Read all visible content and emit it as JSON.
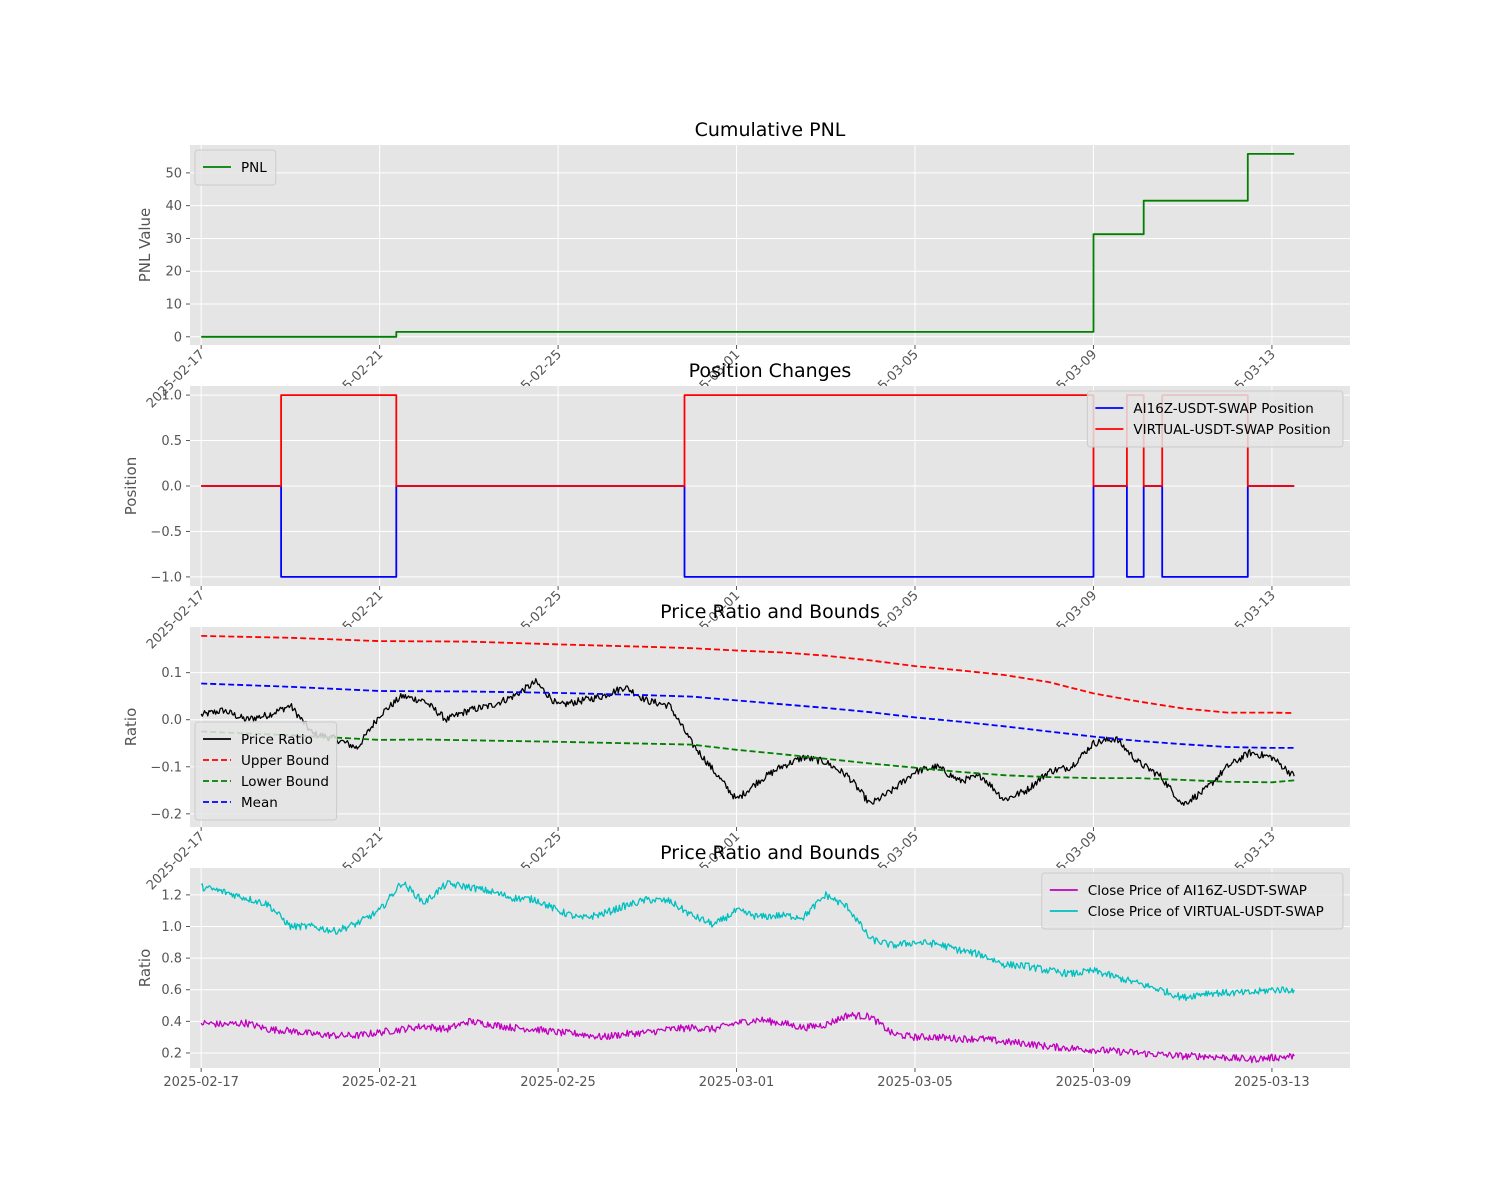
{
  "chart_data": [
    {
      "type": "line",
      "title": "Cumulative PNL",
      "xlabel": "",
      "ylabel": "PNL Value",
      "xlim": [
        "2025-02-16T18:00",
        "2025-03-14T18:00"
      ],
      "ylim": [
        -2.5,
        58.5
      ],
      "yticks": [
        0,
        10,
        20,
        30,
        40,
        50
      ],
      "xticks": [
        "2025-02-17",
        "2025-02-21",
        "2025-02-25",
        "2025-03-01",
        "2025-03-05",
        "2025-03-09",
        "2025-03-13"
      ],
      "legend_position": "upper-left",
      "grid": true,
      "series": [
        {
          "name": "PNL",
          "color": "#008000",
          "style": "solid",
          "step": true,
          "x": [
            "2025-02-17T00:00",
            "2025-02-21T09:00",
            "2025-03-09T00:00",
            "2025-03-10T03:00",
            "2025-03-12T11:00",
            "2025-03-13T12:00"
          ],
          "y": [
            0,
            1.5,
            31.3,
            41.5,
            55.8,
            55.8
          ]
        }
      ]
    },
    {
      "type": "line",
      "title": "Position Changes",
      "xlabel": "",
      "ylabel": "Position",
      "xlim": [
        "2025-02-16T18:00",
        "2025-03-14T18:00"
      ],
      "ylim": [
        -1.1,
        1.1
      ],
      "yticks": [
        -1.0,
        -0.5,
        0.0,
        0.5,
        1.0
      ],
      "ytick_labels": [
        "−1.0",
        "−0.5",
        "0.0",
        "0.5",
        "1.0"
      ],
      "xticks": [
        "2025-02-17",
        "2025-02-21",
        "2025-02-25",
        "2025-03-01",
        "2025-03-05",
        "2025-03-09",
        "2025-03-13"
      ],
      "legend_position": "upper-right",
      "grid": true,
      "series": [
        {
          "name": "AI16Z-USDT-SWAP Position",
          "color": "#0000ff",
          "style": "solid",
          "step": true,
          "x": [
            "2025-02-17T00:00",
            "2025-02-18T19:00",
            "2025-02-21T09:00",
            "2025-02-27T20:00",
            "2025-03-09T00:00",
            "2025-03-09T18:00",
            "2025-03-10T03:00",
            "2025-03-10T13:00",
            "2025-03-12T11:00",
            "2025-03-13T12:00"
          ],
          "y": [
            0,
            -1,
            0,
            -1,
            0,
            -1,
            0,
            -1,
            0,
            0
          ]
        },
        {
          "name": "VIRTUAL-USDT-SWAP Position",
          "color": "#ff0000",
          "style": "solid",
          "step": true,
          "x": [
            "2025-02-17T00:00",
            "2025-02-18T19:00",
            "2025-02-21T09:00",
            "2025-02-27T20:00",
            "2025-03-09T00:00",
            "2025-03-09T18:00",
            "2025-03-10T03:00",
            "2025-03-10T13:00",
            "2025-03-12T11:00",
            "2025-03-13T12:00"
          ],
          "y": [
            0,
            1,
            0,
            1,
            0,
            1,
            0,
            1,
            0,
            0
          ]
        }
      ]
    },
    {
      "type": "line",
      "title": "Price Ratio and Bounds",
      "xlabel": "",
      "ylabel": "Ratio",
      "xlim": [
        "2025-02-16T18:00",
        "2025-03-14T18:00"
      ],
      "ylim": [
        -0.228,
        0.197
      ],
      "yticks": [
        -0.2,
        -0.1,
        0.0,
        0.1
      ],
      "ytick_labels": [
        "−0.2",
        "−0.1",
        "0.0",
        "0.1"
      ],
      "xticks": [
        "2025-02-17",
        "2025-02-21",
        "2025-02-25",
        "2025-03-01",
        "2025-03-05",
        "2025-03-09",
        "2025-03-13"
      ],
      "legend_position": "lower-left",
      "grid": true,
      "series": [
        {
          "name": "Price Ratio",
          "color": "#000000",
          "style": "solid",
          "noisy": true,
          "x": [
            "2025-02-17T00:00",
            "2025-02-17T12:00",
            "2025-02-18T00:00",
            "2025-02-18T12:00",
            "2025-02-19T00:00",
            "2025-02-19T12:00",
            "2025-02-20T00:00",
            "2025-02-20T12:00",
            "2025-02-21T00:00",
            "2025-02-21T12:00",
            "2025-02-22T00:00",
            "2025-02-22T12:00",
            "2025-02-23T00:00",
            "2025-02-23T12:00",
            "2025-02-24T00:00",
            "2025-02-24T12:00",
            "2025-02-25T00:00",
            "2025-02-25T12:00",
            "2025-02-26T00:00",
            "2025-02-26T12:00",
            "2025-02-27T00:00",
            "2025-02-27T12:00",
            "2025-02-28T00:00",
            "2025-02-28T12:00",
            "2025-03-01T00:00",
            "2025-03-01T12:00",
            "2025-03-02T00:00",
            "2025-03-02T12:00",
            "2025-03-03T00:00",
            "2025-03-03T12:00",
            "2025-03-04T00:00",
            "2025-03-04T12:00",
            "2025-03-05T00:00",
            "2025-03-05T12:00",
            "2025-03-06T00:00",
            "2025-03-06T12:00",
            "2025-03-07T00:00",
            "2025-03-07T12:00",
            "2025-03-08T00:00",
            "2025-03-08T12:00",
            "2025-03-09T00:00",
            "2025-03-09T12:00",
            "2025-03-10T00:00",
            "2025-03-10T12:00",
            "2025-03-11T00:00",
            "2025-03-11T12:00",
            "2025-03-12T00:00",
            "2025-03-12T12:00",
            "2025-03-13T00:00",
            "2025-03-13T12:00"
          ],
          "y": [
            0.01,
            0.02,
            0.0,
            0.01,
            0.03,
            -0.03,
            -0.04,
            -0.06,
            0.01,
            0.05,
            0.04,
            0.0,
            0.02,
            0.03,
            0.05,
            0.08,
            0.03,
            0.04,
            0.05,
            0.07,
            0.04,
            0.03,
            -0.05,
            -0.11,
            -0.17,
            -0.13,
            -0.1,
            -0.08,
            -0.09,
            -0.12,
            -0.18,
            -0.15,
            -0.11,
            -0.1,
            -0.13,
            -0.12,
            -0.17,
            -0.15,
            -0.11,
            -0.1,
            -0.05,
            -0.04,
            -0.09,
            -0.12,
            -0.18,
            -0.15,
            -0.1,
            -0.07,
            -0.08,
            -0.12
          ]
        },
        {
          "name": "Upper Bound",
          "color": "#ff0000",
          "style": "dashed",
          "x": [
            "2025-02-17T00:00",
            "2025-02-19T00:00",
            "2025-02-21T00:00",
            "2025-02-23T00:00",
            "2025-02-25T00:00",
            "2025-02-27T00:00",
            "2025-02-28T00:00",
            "2025-03-01T00:00",
            "2025-03-02T00:00",
            "2025-03-03T00:00",
            "2025-03-04T00:00",
            "2025-03-05T00:00",
            "2025-03-06T00:00",
            "2025-03-07T00:00",
            "2025-03-08T00:00",
            "2025-03-09T00:00",
            "2025-03-10T00:00",
            "2025-03-11T00:00",
            "2025-03-12T00:00",
            "2025-03-13T00:00",
            "2025-03-13T12:00"
          ],
          "y": [
            0.178,
            0.174,
            0.167,
            0.166,
            0.16,
            0.155,
            0.152,
            0.147,
            0.143,
            0.136,
            0.126,
            0.114,
            0.105,
            0.095,
            0.08,
            0.056,
            0.039,
            0.024,
            0.015,
            0.015,
            0.014
          ]
        },
        {
          "name": "Lower Bound",
          "color": "#008000",
          "style": "dashed",
          "x": [
            "2025-02-17T00:00",
            "2025-02-19T00:00",
            "2025-02-21T00:00",
            "2025-02-22T00:00",
            "2025-02-25T00:00",
            "2025-02-28T00:00",
            "2025-03-01T00:00",
            "2025-03-02T00:00",
            "2025-03-03T00:00",
            "2025-03-04T00:00",
            "2025-03-05T00:00",
            "2025-03-06T00:00",
            "2025-03-07T00:00",
            "2025-03-08T00:00",
            "2025-03-09T00:00",
            "2025-03-10T00:00",
            "2025-03-11T00:00",
            "2025-03-12T00:00",
            "2025-03-13T00:00",
            "2025-03-13T12:00"
          ],
          "y": [
            -0.025,
            -0.033,
            -0.043,
            -0.042,
            -0.047,
            -0.053,
            -0.064,
            -0.073,
            -0.083,
            -0.093,
            -0.102,
            -0.111,
            -0.118,
            -0.122,
            -0.124,
            -0.124,
            -0.128,
            -0.132,
            -0.133,
            -0.129
          ]
        },
        {
          "name": "Mean",
          "color": "#0000ff",
          "style": "dashed",
          "x": [
            "2025-02-17T00:00",
            "2025-02-19T00:00",
            "2025-02-21T00:00",
            "2025-02-23T00:00",
            "2025-02-25T00:00",
            "2025-02-27T00:00",
            "2025-02-28T00:00",
            "2025-03-01T00:00",
            "2025-03-02T00:00",
            "2025-03-03T00:00",
            "2025-03-04T00:00",
            "2025-03-05T00:00",
            "2025-03-06T00:00",
            "2025-03-07T00:00",
            "2025-03-08T00:00",
            "2025-03-09T00:00",
            "2025-03-10T00:00",
            "2025-03-11T00:00",
            "2025-03-12T00:00",
            "2025-03-13T00:00",
            "2025-03-13T12:00"
          ],
          "y": [
            0.077,
            0.07,
            0.061,
            0.06,
            0.057,
            0.052,
            0.049,
            0.041,
            0.033,
            0.025,
            0.016,
            0.005,
            -0.004,
            -0.014,
            -0.025,
            -0.036,
            -0.045,
            -0.052,
            -0.058,
            -0.06,
            -0.06
          ]
        }
      ]
    },
    {
      "type": "line",
      "title": "Price Ratio and Bounds",
      "xlabel": "",
      "ylabel": "Ratio",
      "xlim": [
        "2025-02-16T18:00",
        "2025-03-14T18:00"
      ],
      "ylim": [
        0.105,
        1.37
      ],
      "yticks": [
        0.2,
        0.4,
        0.6,
        0.8,
        1.0,
        1.2
      ],
      "ytick_labels": [
        "0.2",
        "0.4",
        "0.6",
        "0.8",
        "1.0",
        "1.2"
      ],
      "xticks": [
        "2025-02-17",
        "2025-02-21",
        "2025-02-25",
        "2025-03-01",
        "2025-03-05",
        "2025-03-09",
        "2025-03-13"
      ],
      "legend_position": "upper-right",
      "grid": true,
      "series": [
        {
          "name": "Close Price of AI16Z-USDT-SWAP",
          "color": "#bf00bf",
          "style": "solid",
          "noisy": true,
          "x": [
            "2025-02-17T00:00",
            "2025-02-17T12:00",
            "2025-02-18T00:00",
            "2025-02-18T12:00",
            "2025-02-19T00:00",
            "2025-02-19T12:00",
            "2025-02-20T00:00",
            "2025-02-20T12:00",
            "2025-02-21T00:00",
            "2025-02-21T12:00",
            "2025-02-22T00:00",
            "2025-02-22T12:00",
            "2025-02-23T00:00",
            "2025-02-23T12:00",
            "2025-02-24T00:00",
            "2025-02-24T12:00",
            "2025-02-25T00:00",
            "2025-02-25T12:00",
            "2025-02-26T00:00",
            "2025-02-26T12:00",
            "2025-02-27T00:00",
            "2025-02-27T12:00",
            "2025-02-28T00:00",
            "2025-02-28T12:00",
            "2025-03-01T00:00",
            "2025-03-01T12:00",
            "2025-03-02T00:00",
            "2025-03-02T12:00",
            "2025-03-03T00:00",
            "2025-03-03T12:00",
            "2025-03-04T00:00",
            "2025-03-04T12:00",
            "2025-03-05T00:00",
            "2025-03-05T12:00",
            "2025-03-06T00:00",
            "2025-03-06T12:00",
            "2025-03-07T00:00",
            "2025-03-07T12:00",
            "2025-03-08T00:00",
            "2025-03-08T12:00",
            "2025-03-09T00:00",
            "2025-03-09T12:00",
            "2025-03-10T00:00",
            "2025-03-10T12:00",
            "2025-03-11T00:00",
            "2025-03-11T12:00",
            "2025-03-12T00:00",
            "2025-03-12T12:00",
            "2025-03-13T00:00",
            "2025-03-13T12:00"
          ],
          "y": [
            0.39,
            0.38,
            0.39,
            0.35,
            0.34,
            0.32,
            0.31,
            0.31,
            0.33,
            0.35,
            0.37,
            0.35,
            0.4,
            0.38,
            0.36,
            0.35,
            0.33,
            0.32,
            0.3,
            0.32,
            0.33,
            0.35,
            0.36,
            0.35,
            0.39,
            0.41,
            0.39,
            0.36,
            0.38,
            0.44,
            0.43,
            0.32,
            0.3,
            0.3,
            0.29,
            0.29,
            0.27,
            0.26,
            0.24,
            0.23,
            0.22,
            0.21,
            0.2,
            0.19,
            0.18,
            0.18,
            0.17,
            0.16,
            0.17,
            0.18
          ]
        },
        {
          "name": "Close Price of VIRTUAL-USDT-SWAP",
          "color": "#00bfbf",
          "style": "solid",
          "noisy": true,
          "x": [
            "2025-02-17T00:00",
            "2025-02-17T12:00",
            "2025-02-18T00:00",
            "2025-02-18T12:00",
            "2025-02-19T00:00",
            "2025-02-19T12:00",
            "2025-02-20T00:00",
            "2025-02-20T12:00",
            "2025-02-21T00:00",
            "2025-02-21T12:00",
            "2025-02-22T00:00",
            "2025-02-22T12:00",
            "2025-02-23T00:00",
            "2025-02-23T12:00",
            "2025-02-24T00:00",
            "2025-02-24T12:00",
            "2025-02-25T00:00",
            "2025-02-25T12:00",
            "2025-02-26T00:00",
            "2025-02-26T12:00",
            "2025-02-27T00:00",
            "2025-02-27T12:00",
            "2025-02-28T00:00",
            "2025-02-28T12:00",
            "2025-03-01T00:00",
            "2025-03-01T12:00",
            "2025-03-02T00:00",
            "2025-03-02T12:00",
            "2025-03-03T00:00",
            "2025-03-03T12:00",
            "2025-03-04T00:00",
            "2025-03-04T12:00",
            "2025-03-05T00:00",
            "2025-03-05T12:00",
            "2025-03-06T00:00",
            "2025-03-06T12:00",
            "2025-03-07T00:00",
            "2025-03-07T12:00",
            "2025-03-08T00:00",
            "2025-03-08T12:00",
            "2025-03-09T00:00",
            "2025-03-09T12:00",
            "2025-03-10T00:00",
            "2025-03-10T12:00",
            "2025-03-11T00:00",
            "2025-03-11T12:00",
            "2025-03-12T00:00",
            "2025-03-12T12:00",
            "2025-03-13T00:00",
            "2025-03-13T12:00"
          ],
          "y": [
            1.25,
            1.22,
            1.18,
            1.14,
            1.0,
            1.0,
            0.97,
            1.02,
            1.1,
            1.28,
            1.15,
            1.27,
            1.25,
            1.22,
            1.18,
            1.17,
            1.1,
            1.05,
            1.08,
            1.13,
            1.17,
            1.16,
            1.07,
            1.01,
            1.1,
            1.06,
            1.07,
            1.06,
            1.2,
            1.12,
            0.92,
            0.88,
            0.9,
            0.89,
            0.85,
            0.82,
            0.76,
            0.75,
            0.72,
            0.7,
            0.72,
            0.68,
            0.64,
            0.6,
            0.55,
            0.58,
            0.58,
            0.58,
            0.6,
            0.6
          ]
        }
      ]
    }
  ]
}
